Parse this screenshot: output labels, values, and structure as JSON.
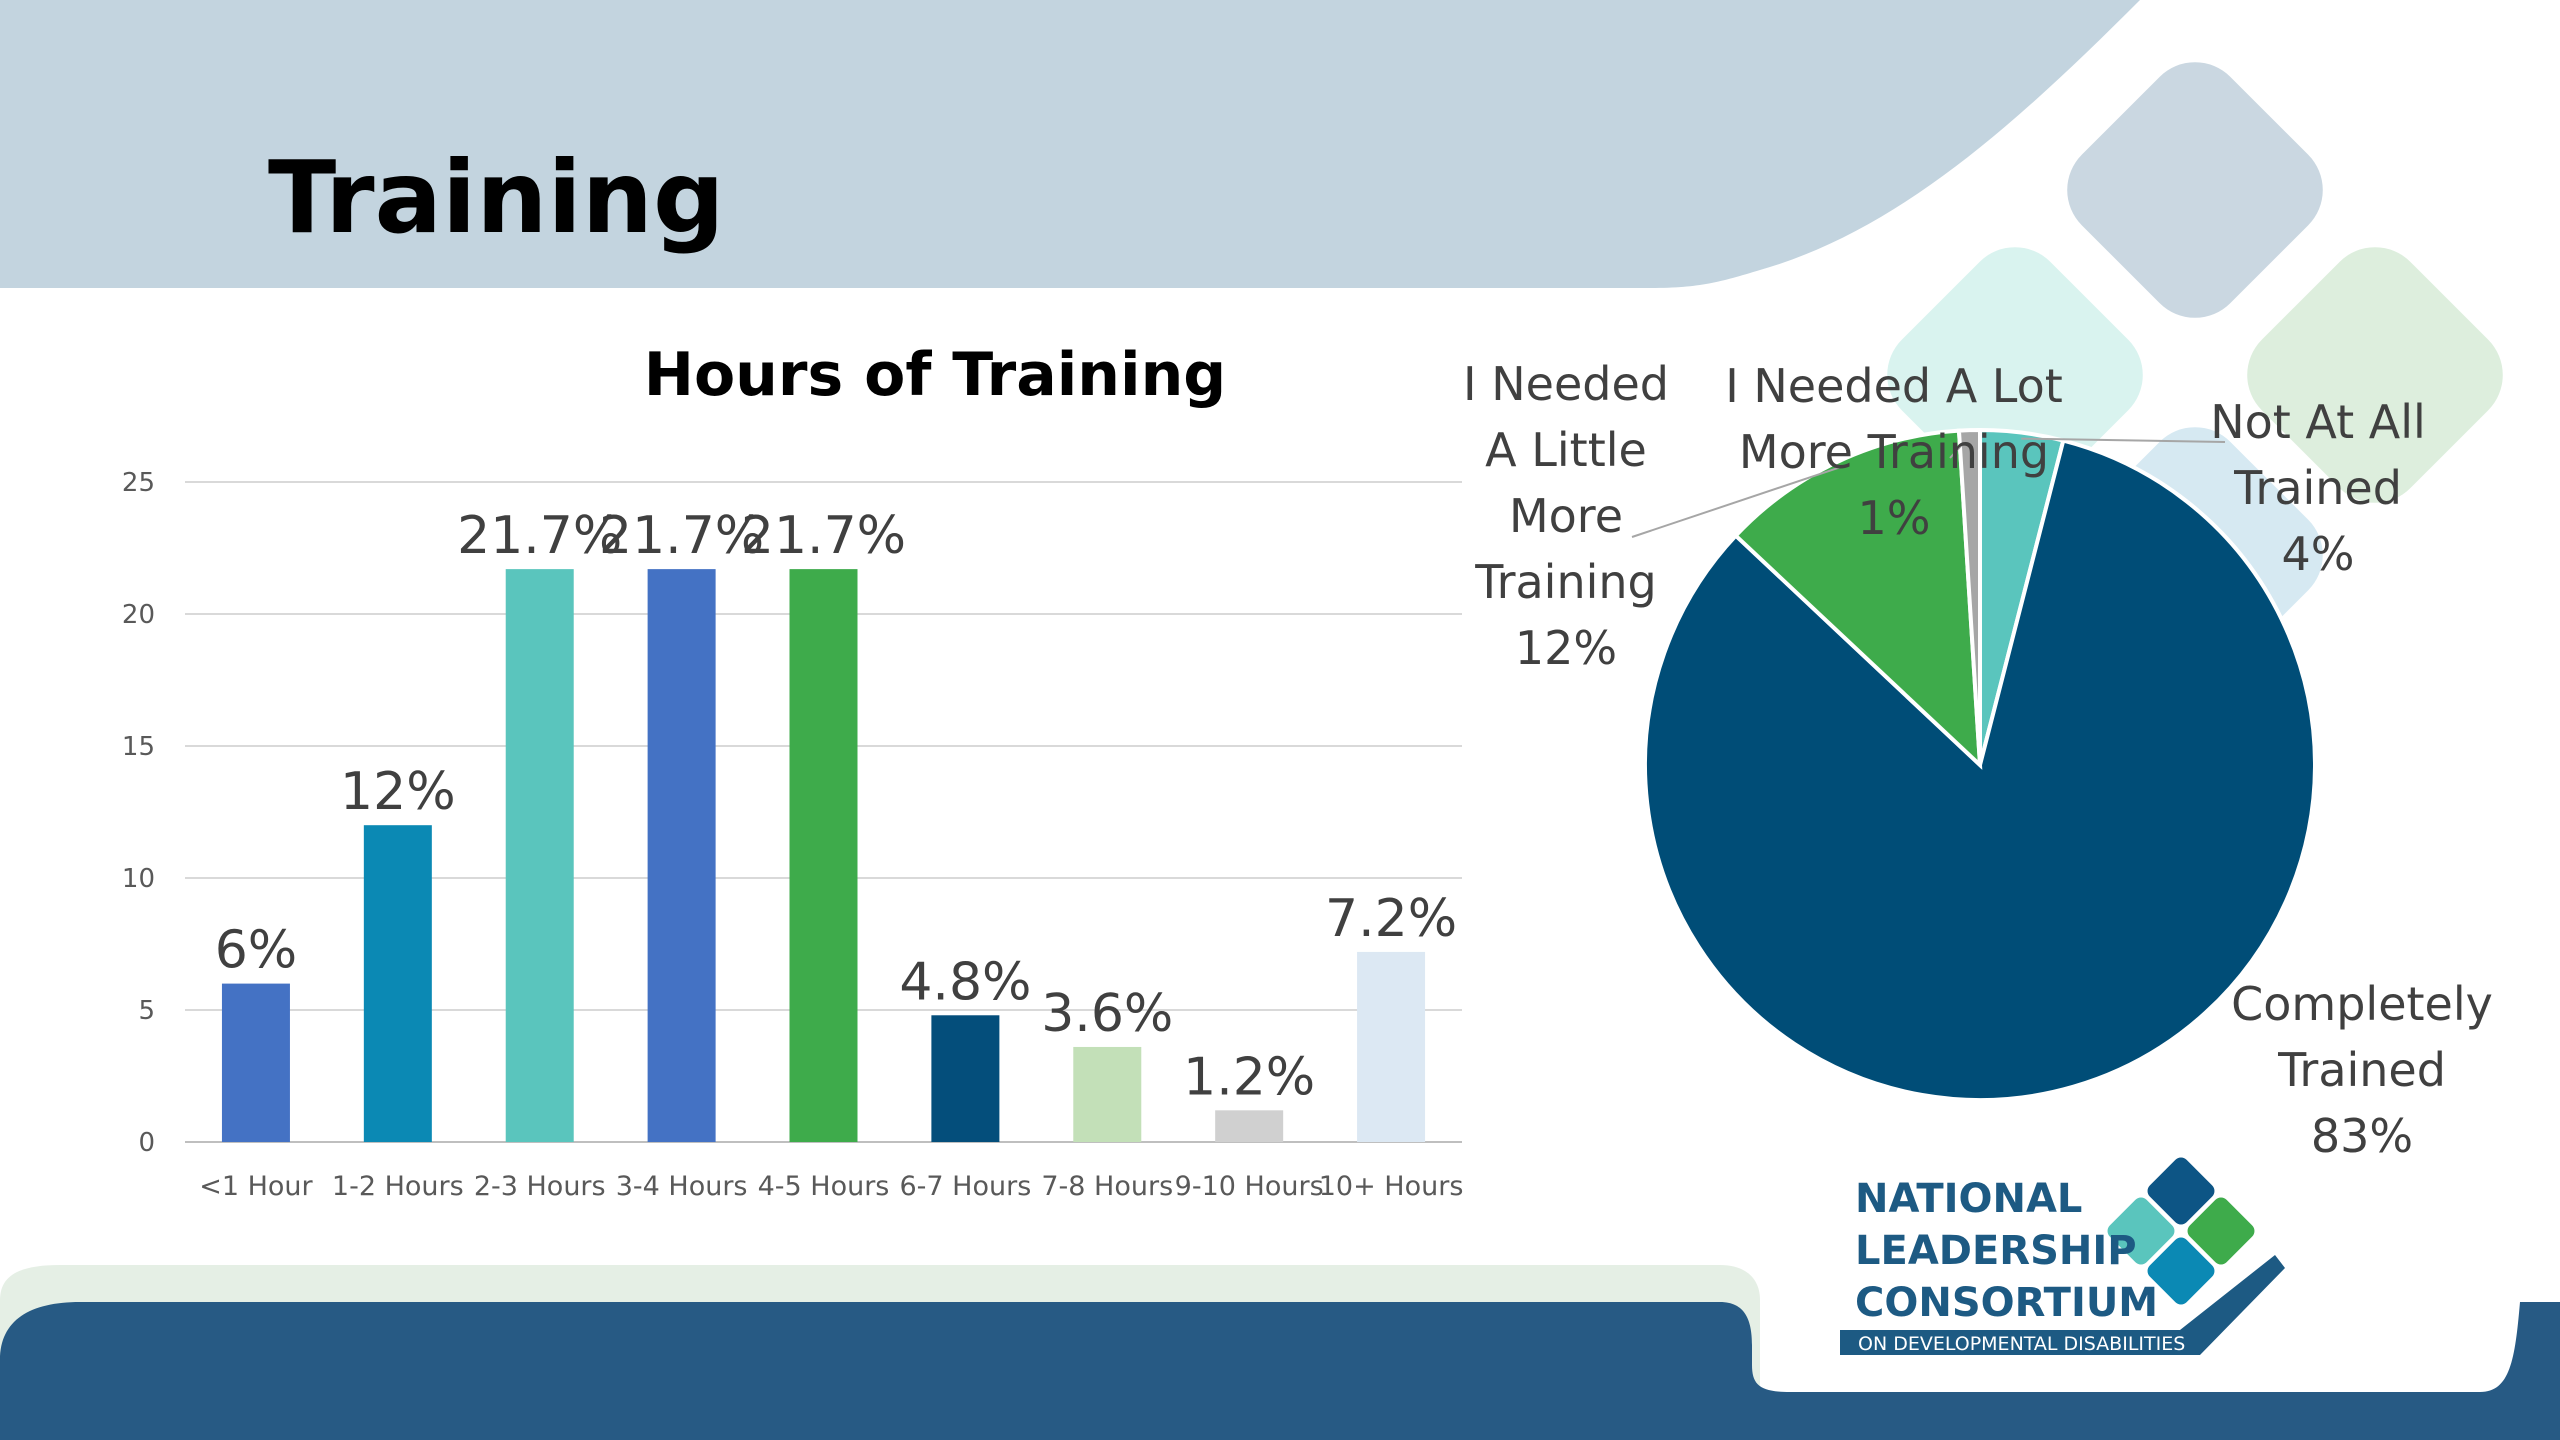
{
  "slide": {
    "title": "Training"
  },
  "colors": {
    "header_band": "#c3d4df",
    "footer_band": "#275a84",
    "footer_accent": "#e5efe5",
    "axis_text": "#595959",
    "label_text": "#404040"
  },
  "chart_data": [
    {
      "type": "bar",
      "title": "Hours of Training",
      "xlabel": "",
      "ylabel": "",
      "ylim": [
        0,
        25
      ],
      "yticks": [
        0,
        5,
        10,
        15,
        20,
        25
      ],
      "grid": true,
      "legend": "none",
      "categories": [
        "<1 Hour",
        "1-2 Hours",
        "2-3 Hours",
        "3-4 Hours",
        "4-5 Hours",
        "6-7 Hours",
        "7-8 Hours",
        "9-10 Hours",
        "10+ Hours"
      ],
      "values": [
        6,
        12,
        21.7,
        21.7,
        21.7,
        4.8,
        3.6,
        1.2,
        7.2
      ],
      "data_labels": [
        "6%",
        "12%",
        "21.7%",
        "21.7%",
        "21.7%",
        "4.8%",
        "3.6%",
        "1.2%",
        "7.2%"
      ],
      "bar_colors": [
        "#4472c4",
        "#0b89b4",
        "#5ac5bd",
        "#4472c4",
        "#3eab4b",
        "#044e7b",
        "#c3e0b8",
        "#d0d0d0",
        "#dce8f3"
      ]
    },
    {
      "type": "pie",
      "title": "",
      "legend": "none",
      "slices": [
        {
          "label": "Not At All Trained",
          "value": 4,
          "data_label": "4%",
          "color": "#5ac5bd"
        },
        {
          "label": "Completely Trained",
          "value": 83,
          "data_label": "83%",
          "color": "#004d77"
        },
        {
          "label": "I Needed A Little More Training",
          "value": 12,
          "data_label": "12%",
          "color": "#3eab4b"
        },
        {
          "label": "I Needed A Lot More Training",
          "value": 1,
          "data_label": "1%",
          "color": "#a6a6a6"
        }
      ],
      "slice_label_text": [
        "Not At All\nTrained\n4%",
        "Completely\nTrained\n83%",
        "I Needed\nA Little\nMore\nTraining\n12%",
        "I Needed A Lot\nMore Training\n1%"
      ]
    }
  ],
  "logo": {
    "lines": [
      "NATIONAL",
      "LEADERSHIP",
      "CONSORTIUM"
    ],
    "tagline": "ON DEVELOPMENTAL DISABILITIES"
  }
}
